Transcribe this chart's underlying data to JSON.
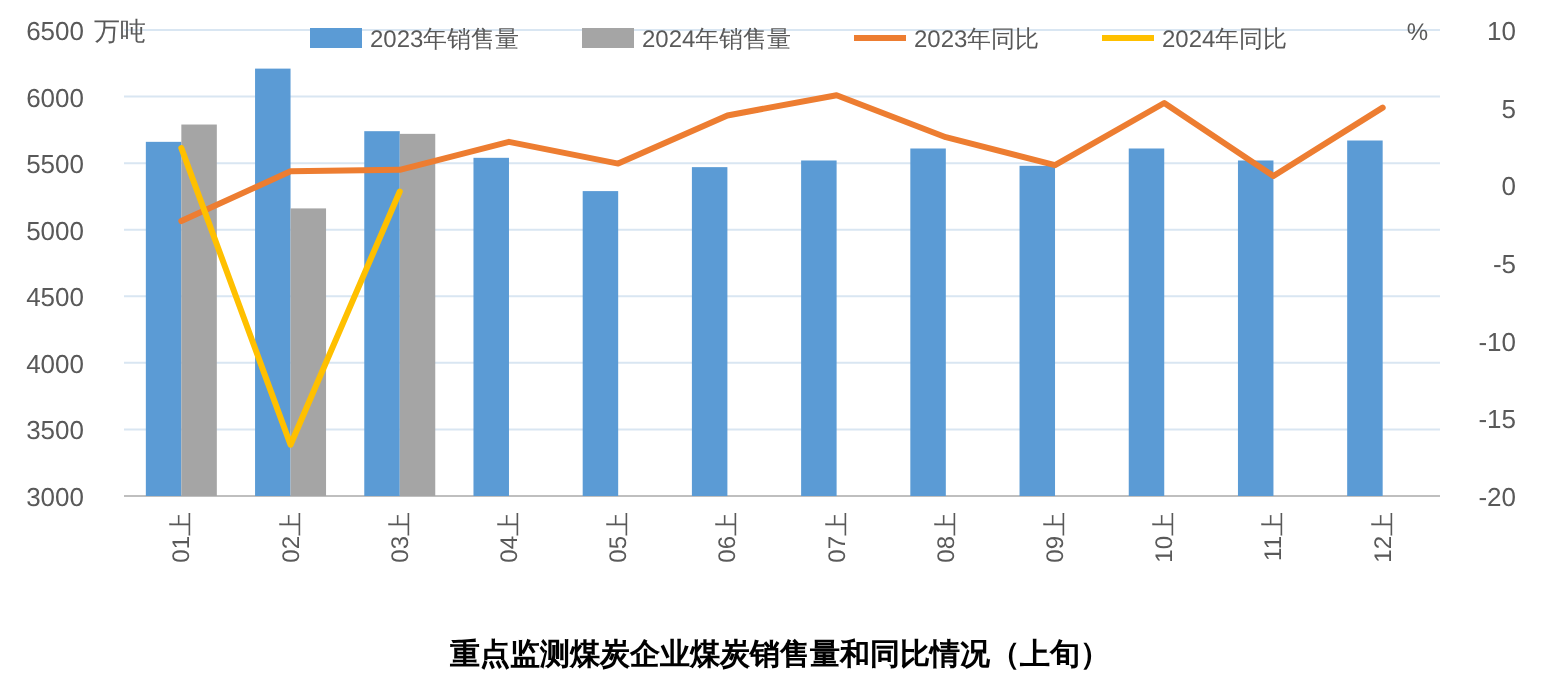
{
  "chart_data": {
    "type": "bar",
    "title": "重点监测煤炭企业煤炭销售量和同比情况（上旬）",
    "ylabel": "万吨",
    "y2label": "%",
    "categories": [
      "01上",
      "02上",
      "03上",
      "04上",
      "05上",
      "06上",
      "07上",
      "08上",
      "09上",
      "10上",
      "11上",
      "12上"
    ],
    "series": [
      {
        "name": "2023年销售量",
        "color": "#5b9bd5",
        "values": [
          5660,
          6210,
          5740,
          5540,
          5290,
          5470,
          5520,
          5610,
          5480,
          5610,
          5520,
          5670
        ]
      },
      {
        "name": "2024年销售量",
        "color": "#a5a5a5",
        "values": [
          5790,
          5160,
          5720,
          null,
          null,
          null,
          null,
          null,
          null,
          null,
          null,
          null
        ]
      },
      {
        "name": "2023年同比",
        "type": "line",
        "axis": "y2",
        "color": "#ed7d31",
        "values": [
          -2.3,
          0.9,
          1.0,
          2.8,
          1.4,
          4.5,
          5.8,
          3.1,
          1.3,
          5.3,
          0.6,
          5.0
        ]
      },
      {
        "name": "2024年同比",
        "type": "line",
        "axis": "y2",
        "color": "#ffc000",
        "values": [
          2.4,
          -16.7,
          -0.4,
          null,
          null,
          null,
          null,
          null,
          null,
          null,
          null,
          null
        ]
      }
    ],
    "ylim": [
      3000,
      6500
    ],
    "yticks": [
      3000,
      3500,
      4000,
      4500,
      5000,
      5500,
      6000,
      6500
    ],
    "y2lim": [
      -20,
      10
    ],
    "y2ticks": [
      -20,
      -15,
      -10,
      -5,
      0,
      5,
      10
    ],
    "grid": "y",
    "legend": "top",
    "marker": "none",
    "line_style": "solid"
  }
}
